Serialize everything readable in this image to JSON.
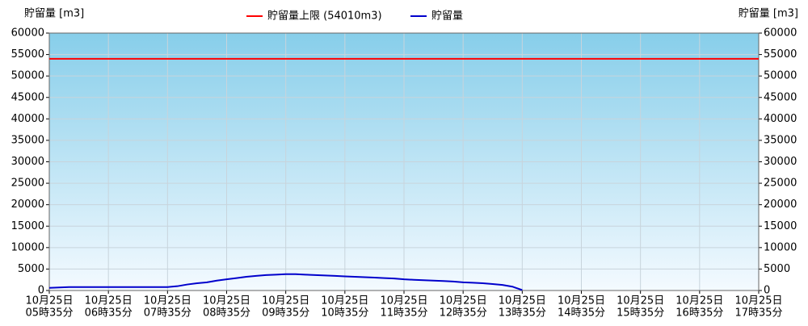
{
  "chart_data": {
    "type": "line",
    "y_label": "貯留量 [m3]",
    "y2_label": "貯留量 [m3]",
    "categories": [
      [
        "10月25日",
        "05時35分"
      ],
      null,
      null,
      null,
      null,
      null,
      [
        "10月25日",
        "06時35分"
      ],
      null,
      null,
      null,
      null,
      null,
      [
        "10月25日",
        "07時35分"
      ],
      null,
      null,
      null,
      null,
      null,
      [
        "10月25日",
        "08時35分"
      ],
      null,
      null,
      null,
      null,
      null,
      [
        "10月25日",
        "09時35分"
      ],
      null,
      null,
      null,
      null,
      null,
      [
        "10月25日",
        "10時35分"
      ],
      null,
      null,
      null,
      null,
      null,
      [
        "10月25日",
        "11時35分"
      ],
      null,
      null,
      null,
      null,
      null,
      [
        "10月25日",
        "12時35分"
      ],
      null,
      null,
      null,
      null,
      null,
      [
        "10月25日",
        "13時35分"
      ],
      null,
      null,
      null,
      null,
      null,
      [
        "10月25日",
        "14時35分"
      ],
      null,
      null,
      null,
      null,
      null,
      [
        "10月25日",
        "15時35分"
      ],
      null,
      null,
      null,
      null,
      null,
      [
        "10月25日",
        "16時35分"
      ],
      null,
      null,
      null,
      null,
      null,
      [
        "10月25日",
        "17時35分"
      ]
    ],
    "threshold": {
      "name": "貯留量上限 (54010m3)",
      "value": 54010,
      "color": "#ff0000"
    },
    "series": [
      {
        "name": "貯留量",
        "color": "#0000cc",
        "values": [
          600,
          700,
          800,
          800,
          800,
          800,
          800,
          800,
          800,
          800,
          800,
          800,
          800,
          1000,
          1400,
          1700,
          1900,
          2300,
          2600,
          2900,
          3200,
          3400,
          3600,
          3700,
          3800,
          3800,
          3700,
          3600,
          3500,
          3400,
          3300,
          3200,
          3100,
          3000,
          2900,
          2800,
          2600,
          2500,
          2400,
          2300,
          2200,
          2100,
          1900,
          1800,
          1700,
          1500,
          1300,
          900,
          100,
          null,
          null,
          null,
          null,
          null,
          null,
          null,
          null,
          null,
          null,
          null,
          null,
          null,
          null,
          null,
          null,
          null,
          null,
          null,
          null,
          null,
          null,
          null,
          null
        ]
      }
    ],
    "ylim": [
      0,
      60000
    ],
    "yticks": [
      0,
      5000,
      10000,
      15000,
      20000,
      25000,
      30000,
      35000,
      40000,
      45000,
      50000,
      55000,
      60000
    ],
    "y2lim": [
      0,
      60000
    ],
    "y2ticks": [
      0,
      5000,
      10000,
      15000,
      20000,
      25000,
      30000,
      35000,
      40000,
      45000,
      50000,
      55000,
      60000
    ],
    "grid": true
  }
}
